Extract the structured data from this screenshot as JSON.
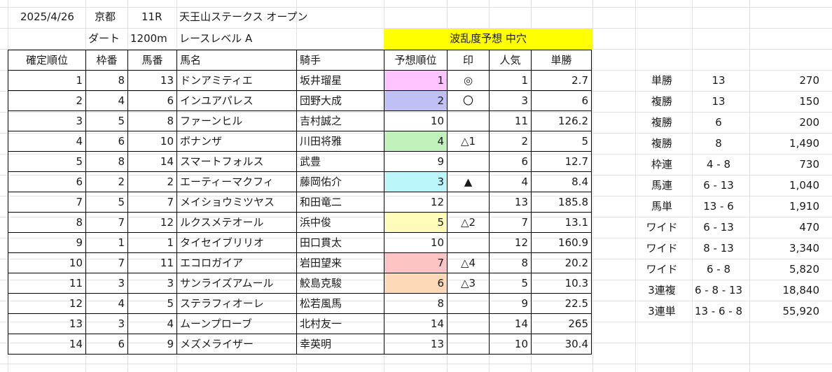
{
  "header": {
    "date": "2025/4/26",
    "venue": "京都",
    "race_no": "11R",
    "race_name": "天王山ステークス オープン",
    "surface": "ダート",
    "distance": "1200m",
    "race_level": "レースレベル A",
    "forecast_title": "波乱度予想 中穴"
  },
  "columns": [
    "確定順位",
    "枠番",
    "馬番",
    "馬名",
    "騎手",
    "予想順位",
    "印",
    "人気",
    "単勝"
  ],
  "rows": [
    {
      "rank": "1",
      "waku": "8",
      "uma": "13",
      "name": "ドンアミティエ",
      "jockey": "坂井瑠星",
      "pred": "1",
      "mark": "◎",
      "pop": "1",
      "odds": "2.7",
      "pred_color": "#ffc4ff"
    },
    {
      "rank": "2",
      "waku": "4",
      "uma": "6",
      "name": "インユアパレス",
      "jockey": "団野大成",
      "pred": "2",
      "mark": "〇",
      "pop": "3",
      "odds": "6",
      "pred_color": "#c0c0f4"
    },
    {
      "rank": "3",
      "waku": "5",
      "uma": "8",
      "name": "ファーンヒル",
      "jockey": "吉村誠之",
      "pred": "10",
      "mark": "",
      "pop": "11",
      "odds": "126.2",
      "pred_color": ""
    },
    {
      "rank": "4",
      "waku": "6",
      "uma": "10",
      "name": "ボナンザ",
      "jockey": "川田将雅",
      "pred": "4",
      "mark": "△1",
      "pop": "2",
      "odds": "5",
      "pred_color": "#c2f2bc"
    },
    {
      "rank": "5",
      "waku": "8",
      "uma": "14",
      "name": "スマートフォルス",
      "jockey": "武豊",
      "pred": "9",
      "mark": "",
      "pop": "6",
      "odds": "12.7",
      "pred_color": ""
    },
    {
      "rank": "6",
      "waku": "2",
      "uma": "2",
      "name": "エーティーマクフィ",
      "jockey": "藤岡佑介",
      "pred": "3",
      "mark": "▲",
      "pop": "4",
      "odds": "8.4",
      "pred_color": "#baf6fa"
    },
    {
      "rank": "7",
      "waku": "5",
      "uma": "7",
      "name": "メイショウミツヤス",
      "jockey": "和田竜二",
      "pred": "12",
      "mark": "",
      "pop": "13",
      "odds": "185.8",
      "pred_color": ""
    },
    {
      "rank": "8",
      "waku": "7",
      "uma": "12",
      "name": "ルクスメテオール",
      "jockey": "浜中俊",
      "pred": "5",
      "mark": "△2",
      "pop": "7",
      "odds": "13.1",
      "pred_color": "#fefcb8"
    },
    {
      "rank": "9",
      "waku": "1",
      "uma": "1",
      "name": "タイセイブリリオ",
      "jockey": "田口貫太",
      "pred": "10",
      "mark": "",
      "pop": "12",
      "odds": "160.9",
      "pred_color": ""
    },
    {
      "rank": "10",
      "waku": "7",
      "uma": "11",
      "name": "エコロガイア",
      "jockey": "岩田望来",
      "pred": "7",
      "mark": "△4",
      "pop": "8",
      "odds": "20.2",
      "pred_color": "#fcc4c4"
    },
    {
      "rank": "11",
      "waku": "3",
      "uma": "3",
      "name": "サンライズアムール",
      "jockey": "鮫島克駿",
      "pred": "6",
      "mark": "△3",
      "pop": "5",
      "odds": "10.3",
      "pred_color": "#fdd9b8"
    },
    {
      "rank": "12",
      "waku": "4",
      "uma": "5",
      "name": "ステラフィオーレ",
      "jockey": "松若風馬",
      "pred": "8",
      "mark": "",
      "pop": "9",
      "odds": "22.5",
      "pred_color": ""
    },
    {
      "rank": "13",
      "waku": "3",
      "uma": "4",
      "name": "ムーンプローブ",
      "jockey": "北村友一",
      "pred": "14",
      "mark": "",
      "pop": "14",
      "odds": "265",
      "pred_color": ""
    },
    {
      "rank": "14",
      "waku": "6",
      "uma": "9",
      "name": "メズメライザー",
      "jockey": "幸英明",
      "pred": "13",
      "mark": "",
      "pop": "10",
      "odds": "30.4",
      "pred_color": ""
    }
  ],
  "payouts": [
    {
      "type": "単勝",
      "combo": "13",
      "amount": "270"
    },
    {
      "type": "複勝",
      "combo": "13",
      "amount": "150"
    },
    {
      "type": "複勝",
      "combo": "6",
      "amount": "200"
    },
    {
      "type": "複勝",
      "combo": "8",
      "amount": "1,490"
    },
    {
      "type": "枠連",
      "combo": "4 - 8",
      "amount": "730"
    },
    {
      "type": "馬連",
      "combo": "6 - 13",
      "amount": "1,040"
    },
    {
      "type": "馬単",
      "combo": "13 - 6",
      "amount": "1,910"
    },
    {
      "type": "ワイド",
      "combo": "6 - 13",
      "amount": "470"
    },
    {
      "type": "ワイド",
      "combo": "8 - 13",
      "amount": "3,340"
    },
    {
      "type": "ワイド",
      "combo": "6 - 8",
      "amount": "5,820"
    },
    {
      "type": "3連複",
      "combo": "6 - 8 - 13",
      "amount": "18,840"
    },
    {
      "type": "3連単",
      "combo": "13 - 6 - 8",
      "amount": "55,920"
    }
  ]
}
